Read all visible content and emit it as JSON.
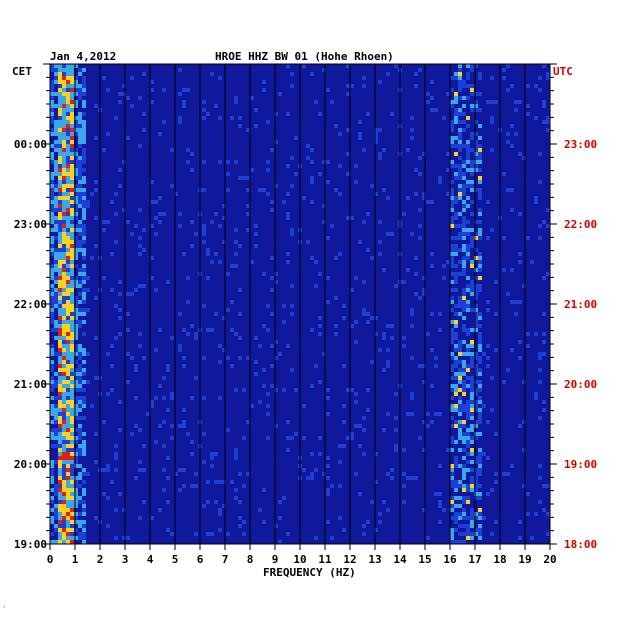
{
  "chart_data": {
    "type": "heatmap",
    "date": "Jan 4,2012",
    "title": "HROE HHZ BW 01 (Hohe Rhoen)",
    "xlabel": "FREQUENCY (HZ)",
    "x_ticks": [
      "0",
      "1",
      "2",
      "3",
      "4",
      "5",
      "6",
      "7",
      "8",
      "9",
      "10",
      "11",
      "12",
      "13",
      "14",
      "15",
      "16",
      "17",
      "18",
      "19",
      "20"
    ],
    "xlim": [
      0,
      20
    ],
    "left_axis_label": "CET",
    "right_axis_label": "UTC",
    "left_ticks": [
      "00:00",
      "23:00",
      "22:00",
      "21:00",
      "20:00",
      "19:00"
    ],
    "right_ticks": [
      "23:00",
      "22:00",
      "21:00",
      "20:00",
      "19:00",
      "18:00"
    ],
    "time_range_utc": [
      "18:00",
      "00:24"
    ],
    "energy_bands_hz": [
      {
        "from": 0.2,
        "to": 0.8,
        "level": "high"
      },
      {
        "from": 15.9,
        "to": 17.2,
        "level": "medium"
      }
    ],
    "colors": {
      "background": "#10189c",
      "low": "#1d3fd6",
      "mid": "#3aa8e8",
      "high": "#ffd21a",
      "peak": "#e02010",
      "right_axis": "#d40000"
    }
  },
  "corner_mark": "᾽"
}
